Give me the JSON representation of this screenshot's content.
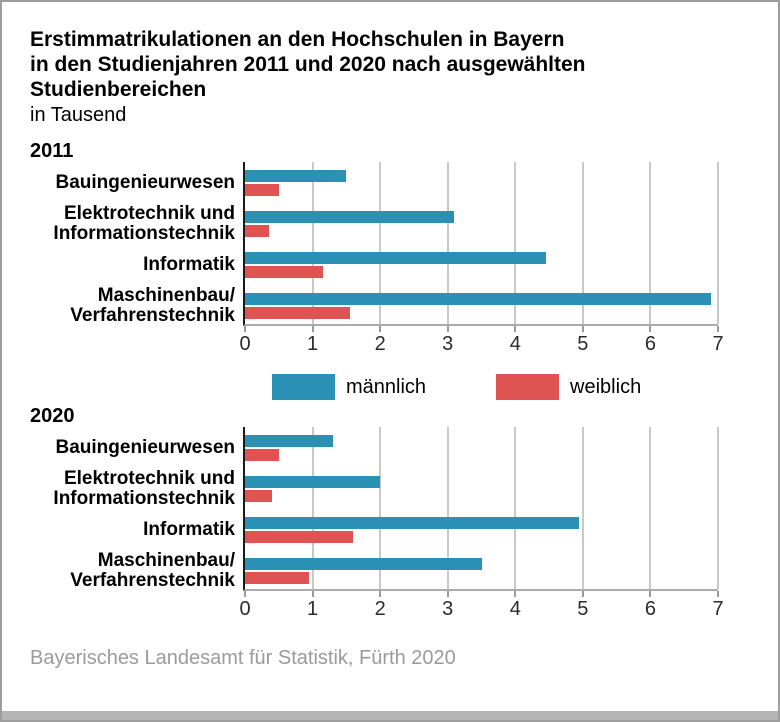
{
  "title": "Erstimmatrikulationen an den Hochschulen in Bayern\nin den Studienjahren 2011 und 2020 nach ausgewählten\nStudienbereichen",
  "subtitle": "in Tausend",
  "source": "Bayerisches Landesamt für Statistik, Fürth 2020",
  "colors": {
    "male": "#2a90b4",
    "female": "#df5353",
    "grid": "#c9c9c9",
    "zero_axis": "#1a1a1a",
    "baseline": "#ababab",
    "tick": "#9a9a9a",
    "source_text": "#9b9b9b",
    "frame_border": "#9d9d9d",
    "bottom_strip": "#b5b5b5"
  },
  "legend": {
    "items": [
      {
        "label": "männlich",
        "color_key": "male"
      },
      {
        "label": "weiblich",
        "color_key": "female"
      }
    ]
  },
  "chart_data": [
    {
      "type": "bar",
      "orientation": "horizontal",
      "group_label": "2011",
      "categories": [
        "Bauingenieurwesen",
        "Elektrotechnik und\nInformationstechnik",
        "Informatik",
        "Maschinenbau/\nVerfahrenstechnik"
      ],
      "series": [
        {
          "name": "männlich",
          "values": [
            1.5,
            3.1,
            4.45,
            6.9
          ]
        },
        {
          "name": "weiblich",
          "values": [
            0.5,
            0.35,
            1.15,
            1.55
          ]
        }
      ],
      "xlim": [
        0,
        7
      ],
      "xticks": [
        0,
        1,
        2,
        3,
        4,
        5,
        6,
        7
      ],
      "grid": "vertical",
      "legend_position": "between-charts"
    },
    {
      "type": "bar",
      "orientation": "horizontal",
      "group_label": "2020",
      "categories": [
        "Bauingenieurwesen",
        "Elektrotechnik und\nInformationstechnik",
        "Informatik",
        "Maschinenbau/\nVerfahrenstechnik"
      ],
      "series": [
        {
          "name": "männlich",
          "values": [
            1.3,
            2.0,
            4.95,
            3.5
          ]
        },
        {
          "name": "weiblich",
          "values": [
            0.5,
            0.4,
            1.6,
            0.95
          ]
        }
      ],
      "xlim": [
        0,
        7
      ],
      "xticks": [
        0,
        1,
        2,
        3,
        4,
        5,
        6,
        7
      ],
      "grid": "vertical",
      "legend_position": "between-charts"
    }
  ]
}
